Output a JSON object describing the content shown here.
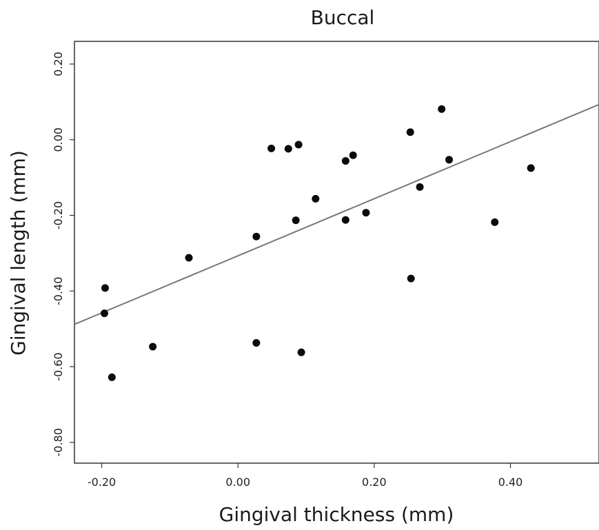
{
  "chart_data": {
    "type": "scatter",
    "title": "Buccal",
    "xlabel": "Gingival thickness (mm)",
    "ylabel": "Gingival length (mm)",
    "xlim": [
      -0.24,
      0.53
    ],
    "ylim": [
      -0.855,
      0.26
    ],
    "x_ticks": [
      -0.2,
      0.0,
      0.2,
      0.4
    ],
    "x_tick_labels": [
      "-0.20",
      "0.00",
      "0.20",
      "0.40"
    ],
    "y_ticks": [
      0.2,
      0.0,
      -0.2,
      -0.4,
      -0.6,
      -0.8
    ],
    "y_tick_labels": [
      "0.20",
      "0.00",
      "-0.20",
      "-0.40",
      "-0.60",
      "-0.80"
    ],
    "grid": false,
    "series": [
      {
        "points": [
          {
            "x": -0.195,
            "y": -0.392
          },
          {
            "x": -0.196,
            "y": -0.459
          },
          {
            "x": -0.185,
            "y": -0.628
          },
          {
            "x": -0.125,
            "y": -0.547
          },
          {
            "x": -0.072,
            "y": -0.312
          },
          {
            "x": 0.027,
            "y": -0.256
          },
          {
            "x": 0.027,
            "y": -0.537
          },
          {
            "x": 0.049,
            "y": -0.023
          },
          {
            "x": 0.074,
            "y": -0.024
          },
          {
            "x": 0.085,
            "y": -0.213
          },
          {
            "x": 0.089,
            "y": -0.013
          },
          {
            "x": 0.093,
            "y": -0.562
          },
          {
            "x": 0.114,
            "y": -0.156
          },
          {
            "x": 0.158,
            "y": -0.056
          },
          {
            "x": 0.158,
            "y": -0.212
          },
          {
            "x": 0.169,
            "y": -0.041
          },
          {
            "x": 0.188,
            "y": -0.193
          },
          {
            "x": 0.253,
            "y": 0.02
          },
          {
            "x": 0.254,
            "y": -0.367
          },
          {
            "x": 0.267,
            "y": -0.125
          },
          {
            "x": 0.299,
            "y": 0.081
          },
          {
            "x": 0.31,
            "y": -0.053
          },
          {
            "x": 0.377,
            "y": -0.218
          },
          {
            "x": 0.43,
            "y": -0.075
          }
        ]
      }
    ],
    "fit_line": {
      "x": [
        -0.24,
        0.53
      ],
      "y": [
        -0.488,
        0.093
      ]
    }
  },
  "colors": {
    "point": "#0a0a0a",
    "line": "#777777",
    "axis": "#333333"
  }
}
